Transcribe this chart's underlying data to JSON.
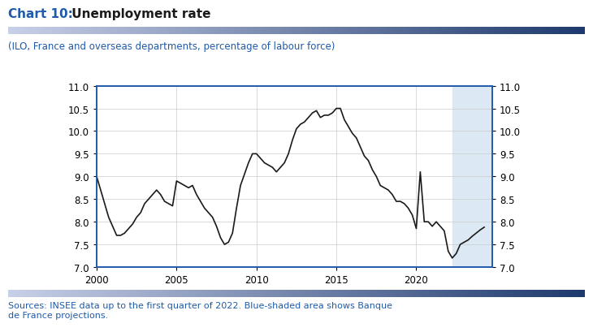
{
  "title_bold": "Chart 10:",
  "title_normal": " Unemployment rate",
  "subtitle": "(ILO, France and overseas departments, percentage of labour force)",
  "source_text": "Sources: INSEE data up to the first quarter of 2022. Blue-shaded area shows Banque\nde France projections.",
  "title_color": "#1a1a1a",
  "subtitle_color": "#1f5baa",
  "source_color": "#1f5baa",
  "line_color": "#1a1a1a",
  "shade_color": "#dce8f3",
  "border_color": "#1f5baa",
  "header_bar_colors": [
    "#c8d0e8",
    "#1f3a6e"
  ],
  "footer_bar_colors": [
    "#c8d0e8",
    "#1f3a6e"
  ],
  "ylim": [
    7.0,
    11.0
  ],
  "yticks": [
    7.0,
    7.5,
    8.0,
    8.5,
    9.0,
    9.5,
    10.0,
    10.5,
    11.0
  ],
  "xticks": [
    2000,
    2005,
    2010,
    2015,
    2020
  ],
  "xlim": [
    2000,
    2024.75
  ],
  "shade_start": 2022.25,
  "shade_end": 2024.75,
  "x_data": [
    2000.0,
    2000.25,
    2000.5,
    2000.75,
    2001.0,
    2001.25,
    2001.5,
    2001.75,
    2002.0,
    2002.25,
    2002.5,
    2002.75,
    2003.0,
    2003.25,
    2003.5,
    2003.75,
    2004.0,
    2004.25,
    2004.5,
    2004.75,
    2005.0,
    2005.25,
    2005.5,
    2005.75,
    2006.0,
    2006.25,
    2006.5,
    2006.75,
    2007.0,
    2007.25,
    2007.5,
    2007.75,
    2008.0,
    2008.25,
    2008.5,
    2008.75,
    2009.0,
    2009.25,
    2009.5,
    2009.75,
    2010.0,
    2010.25,
    2010.5,
    2010.75,
    2011.0,
    2011.25,
    2011.5,
    2011.75,
    2012.0,
    2012.25,
    2012.5,
    2012.75,
    2013.0,
    2013.25,
    2013.5,
    2013.75,
    2014.0,
    2014.25,
    2014.5,
    2014.75,
    2015.0,
    2015.25,
    2015.5,
    2015.75,
    2016.0,
    2016.25,
    2016.5,
    2016.75,
    2017.0,
    2017.25,
    2017.5,
    2017.75,
    2018.0,
    2018.25,
    2018.5,
    2018.75,
    2019.0,
    2019.25,
    2019.5,
    2019.75,
    2020.0,
    2020.25,
    2020.5,
    2020.75,
    2021.0,
    2021.25,
    2021.5,
    2021.75,
    2022.0,
    2022.25,
    2022.5,
    2022.75,
    2023.0,
    2023.25,
    2023.5,
    2023.75,
    2024.0,
    2024.25
  ],
  "y_data": [
    9.0,
    8.7,
    8.4,
    8.1,
    7.9,
    7.7,
    7.7,
    7.75,
    7.85,
    7.95,
    8.1,
    8.2,
    8.4,
    8.5,
    8.6,
    8.7,
    8.6,
    8.45,
    8.4,
    8.35,
    8.9,
    8.85,
    8.8,
    8.75,
    8.8,
    8.6,
    8.45,
    8.3,
    8.2,
    8.1,
    7.9,
    7.65,
    7.5,
    7.55,
    7.75,
    8.3,
    8.8,
    9.05,
    9.3,
    9.5,
    9.5,
    9.4,
    9.3,
    9.25,
    9.2,
    9.1,
    9.2,
    9.3,
    9.5,
    9.8,
    10.05,
    10.15,
    10.2,
    10.3,
    10.4,
    10.45,
    10.3,
    10.35,
    10.35,
    10.4,
    10.5,
    10.5,
    10.25,
    10.1,
    9.95,
    9.85,
    9.65,
    9.45,
    9.35,
    9.15,
    9.0,
    8.8,
    8.75,
    8.7,
    8.6,
    8.45,
    8.45,
    8.4,
    8.3,
    8.15,
    7.85,
    9.1,
    8.0,
    8.0,
    7.9,
    8.0,
    7.9,
    7.8,
    7.35,
    7.2,
    7.3,
    7.5,
    7.55,
    7.6,
    7.68,
    7.75,
    7.82,
    7.88
  ]
}
